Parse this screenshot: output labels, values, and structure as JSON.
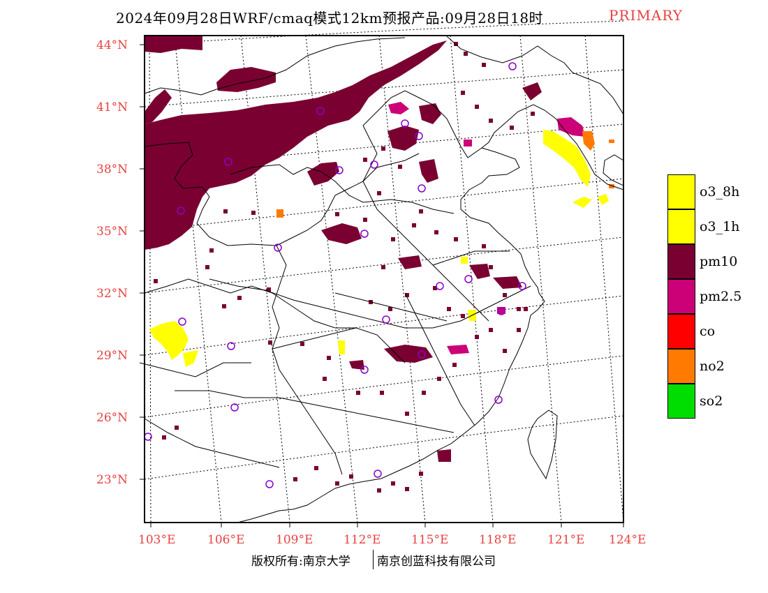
{
  "header": {
    "title": "2024年09月28日WRF/cmaq模式12km预报产品:09月28日18时",
    "tag": "PRIMARY"
  },
  "map": {
    "lat_labels": [
      "44°N",
      "41°N",
      "38°N",
      "35°N",
      "32°N",
      "29°N",
      "26°N",
      "23°N"
    ],
    "lon_labels": [
      "103°E",
      "106°E",
      "109°E",
      "112°E",
      "115°E",
      "118°E",
      "121°E",
      "124°E"
    ],
    "colors": {
      "pm10": "#7a0032",
      "pm25": "#cc0077",
      "o3": "#ffff00",
      "no2": "#ff7a00",
      "station": "#8800cc",
      "label": "#e84040"
    }
  },
  "legend": {
    "items": [
      {
        "label": "o3_8h",
        "color": "#ffff00"
      },
      {
        "label": "o3_1h",
        "color": "#ffff00"
      },
      {
        "label": "pm10",
        "color": "#7a0032"
      },
      {
        "label": "pm2.5",
        "color": "#cc0077"
      },
      {
        "label": "co",
        "color": "#ff0000"
      },
      {
        "label": "no2",
        "color": "#ff7a00"
      },
      {
        "label": "so2",
        "color": "#00dd00"
      }
    ]
  },
  "footer": {
    "left": "版权所有:南京大学",
    "right": "南京创蓝科技有限公司"
  }
}
